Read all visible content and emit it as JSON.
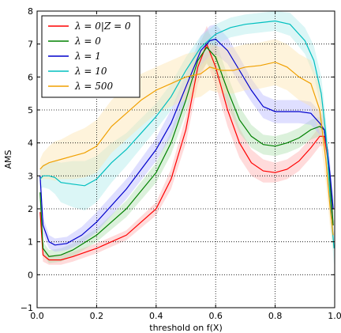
{
  "chart_data": {
    "type": "line",
    "xlabel": "threshold on f(X)",
    "ylabel": "AMS",
    "xlim": [
      0.0,
      1.0
    ],
    "ylim": [
      -1,
      8
    ],
    "xticks": [
      "0.0",
      "0.2",
      "0.4",
      "0.6",
      "0.8",
      "1.0"
    ],
    "yticks": [
      "−1",
      "0",
      "1",
      "2",
      "3",
      "4",
      "5",
      "6",
      "7",
      "8"
    ],
    "grid": true,
    "legend_position": "top-left",
    "series": [
      {
        "name": "λ = 0|Z = 0",
        "color": "#ff0000",
        "band_color": "#ffb0b0",
        "x": [
          0.01,
          0.02,
          0.04,
          0.08,
          0.12,
          0.2,
          0.3,
          0.4,
          0.45,
          0.5,
          0.54,
          0.57,
          0.6,
          0.64,
          0.68,
          0.72,
          0.76,
          0.8,
          0.84,
          0.88,
          0.92,
          0.95,
          0.965,
          0.975,
          0.985,
          0.995
        ],
        "y": [
          1.9,
          0.6,
          0.45,
          0.45,
          0.55,
          0.8,
          1.2,
          2.0,
          2.9,
          4.4,
          6.3,
          7.0,
          6.3,
          5.0,
          4.0,
          3.4,
          3.15,
          3.1,
          3.2,
          3.45,
          3.85,
          4.2,
          4.2,
          3.6,
          2.5,
          1.5
        ],
        "band": [
          0.3,
          0.2,
          0.15,
          0.15,
          0.15,
          0.15,
          0.15,
          0.2,
          0.3,
          0.4,
          0.5,
          0.55,
          0.55,
          0.5,
          0.45,
          0.4,
          0.35,
          0.3,
          0.3,
          0.3,
          0.3,
          0.3,
          0.3,
          0.3,
          0.3,
          0.3
        ]
      },
      {
        "name": "λ = 0",
        "color": "#008000",
        "band_color": "#b0e0b0",
        "x": [
          0.01,
          0.02,
          0.04,
          0.08,
          0.12,
          0.2,
          0.3,
          0.4,
          0.45,
          0.5,
          0.54,
          0.57,
          0.6,
          0.64,
          0.68,
          0.72,
          0.76,
          0.8,
          0.84,
          0.88,
          0.92,
          0.95,
          0.965,
          0.975,
          0.985,
          0.995
        ],
        "y": [
          2.5,
          0.8,
          0.55,
          0.6,
          0.75,
          1.2,
          2.0,
          3.1,
          4.0,
          5.3,
          6.5,
          6.9,
          6.6,
          5.6,
          4.7,
          4.2,
          3.95,
          3.9,
          4.0,
          4.15,
          4.4,
          4.5,
          4.4,
          3.8,
          2.8,
          1.5
        ],
        "band": [
          0.3,
          0.2,
          0.2,
          0.2,
          0.2,
          0.2,
          0.25,
          0.3,
          0.35,
          0.4,
          0.45,
          0.5,
          0.5,
          0.45,
          0.4,
          0.35,
          0.3,
          0.3,
          0.3,
          0.3,
          0.3,
          0.3,
          0.3,
          0.3,
          0.3,
          0.3
        ]
      },
      {
        "name": "λ = 1",
        "color": "#0000cc",
        "band_color": "#b8b8ff",
        "x": [
          0.01,
          0.02,
          0.04,
          0.06,
          0.1,
          0.15,
          0.2,
          0.3,
          0.4,
          0.45,
          0.5,
          0.55,
          0.58,
          0.6,
          0.64,
          0.68,
          0.72,
          0.76,
          0.8,
          0.84,
          0.88,
          0.92,
          0.95,
          0.965,
          0.975,
          0.985,
          0.995
        ],
        "y": [
          3.0,
          1.5,
          1.0,
          0.9,
          0.95,
          1.2,
          1.6,
          2.6,
          3.8,
          4.6,
          5.7,
          6.8,
          7.1,
          7.15,
          6.8,
          6.2,
          5.6,
          5.1,
          4.95,
          4.95,
          4.95,
          4.9,
          4.6,
          4.4,
          3.8,
          3.0,
          2.0
        ],
        "band": [
          0.3,
          0.25,
          0.2,
          0.2,
          0.2,
          0.25,
          0.3,
          0.3,
          0.35,
          0.4,
          0.4,
          0.45,
          0.45,
          0.45,
          0.4,
          0.4,
          0.35,
          0.35,
          0.35,
          0.35,
          0.35,
          0.35,
          0.35,
          0.35,
          0.35,
          0.35,
          0.35
        ]
      },
      {
        "name": "λ = 10",
        "color": "#00bfbf",
        "band_color": "#b0ecec",
        "x": [
          0.01,
          0.02,
          0.04,
          0.06,
          0.08,
          0.12,
          0.16,
          0.2,
          0.25,
          0.3,
          0.35,
          0.4,
          0.45,
          0.5,
          0.55,
          0.6,
          0.65,
          0.7,
          0.75,
          0.8,
          0.85,
          0.9,
          0.93,
          0.955,
          0.97,
          0.98,
          0.99,
          0.998
        ],
        "y": [
          2.9,
          3.0,
          3.0,
          2.95,
          2.8,
          2.75,
          2.7,
          2.9,
          3.4,
          3.8,
          4.3,
          4.8,
          5.4,
          6.2,
          6.9,
          7.3,
          7.5,
          7.6,
          7.65,
          7.7,
          7.6,
          7.1,
          6.5,
          5.5,
          4.3,
          3.0,
          1.6,
          0.8
        ],
        "band": [
          0.3,
          0.35,
          0.4,
          0.5,
          0.6,
          0.7,
          0.75,
          0.7,
          0.6,
          0.5,
          0.45,
          0.4,
          0.4,
          0.4,
          0.35,
          0.3,
          0.3,
          0.3,
          0.3,
          0.3,
          0.35,
          0.4,
          0.45,
          0.5,
          0.5,
          0.5,
          0.5,
          0.5
        ]
      },
      {
        "name": "λ = 500",
        "color": "#f0a000",
        "band_color": "#fce4b0",
        "x": [
          0.01,
          0.02,
          0.04,
          0.06,
          0.08,
          0.12,
          0.16,
          0.2,
          0.25,
          0.3,
          0.35,
          0.4,
          0.45,
          0.5,
          0.55,
          0.58,
          0.62,
          0.66,
          0.7,
          0.75,
          0.8,
          0.84,
          0.88,
          0.92,
          0.95,
          0.97,
          0.985,
          0.995
        ],
        "y": [
          3.2,
          3.3,
          3.4,
          3.45,
          3.5,
          3.6,
          3.7,
          3.9,
          4.5,
          4.9,
          5.3,
          5.6,
          5.8,
          6.0,
          6.1,
          6.3,
          6.2,
          6.2,
          6.3,
          6.35,
          6.45,
          6.3,
          6.0,
          5.8,
          5.0,
          3.5,
          2.0,
          1.2
        ],
        "band": [
          0.3,
          0.4,
          0.5,
          0.6,
          0.6,
          0.7,
          0.75,
          0.8,
          0.8,
          0.8,
          0.8,
          0.7,
          0.7,
          0.7,
          0.7,
          0.7,
          0.7,
          0.7,
          0.7,
          0.7,
          0.7,
          0.7,
          0.7,
          0.7,
          0.7,
          0.7,
          0.6,
          0.5
        ]
      }
    ]
  }
}
